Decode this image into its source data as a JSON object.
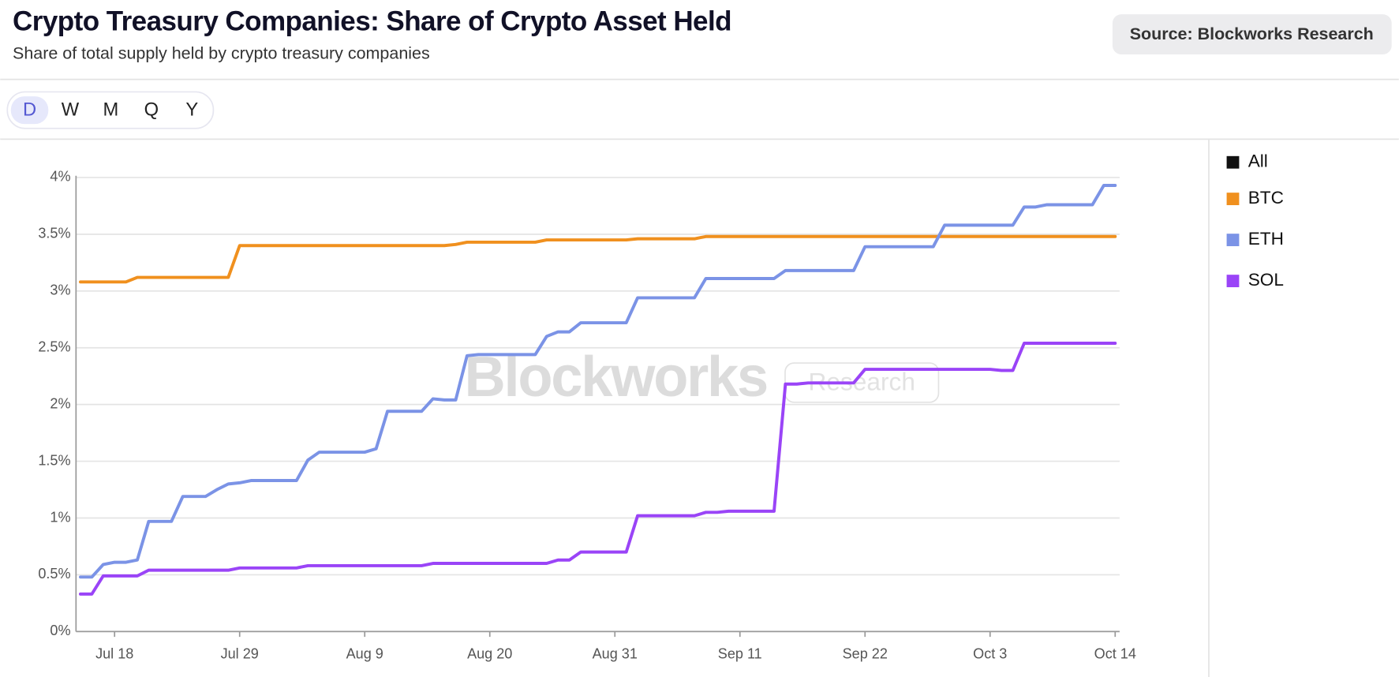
{
  "source": "Source: Blockworks Research",
  "timeframes": [
    "D",
    "W",
    "M",
    "Q",
    "Y"
  ],
  "selected_timeframe": 0,
  "chart_data": {
    "type": "line",
    "title": "Crypto Treasury Companies: Share of Crypto Asset Held",
    "subtitle": "Share of total supply held by crypto treasury companies",
    "watermark": [
      "Blockworks",
      "Research"
    ],
    "categories": [
      null,
      null,
      null,
      "Jul 18",
      null,
      null,
      null,
      null,
      null,
      null,
      null,
      null,
      null,
      null,
      "Jul 29",
      null,
      null,
      null,
      null,
      null,
      null,
      null,
      null,
      null,
      null,
      "Aug 9",
      null,
      null,
      null,
      null,
      null,
      null,
      null,
      null,
      null,
      null,
      "Aug 20",
      null,
      null,
      null,
      null,
      null,
      null,
      null,
      null,
      null,
      null,
      "Aug 31",
      null,
      null,
      null,
      null,
      null,
      null,
      null,
      null,
      null,
      null,
      "Sep 11",
      null,
      null,
      null,
      null,
      null,
      null,
      null,
      null,
      null,
      null,
      "Sep 22",
      null,
      null,
      null,
      null,
      null,
      null,
      null,
      null,
      null,
      null,
      "Oct 3",
      null,
      null,
      null,
      null,
      null,
      null,
      null,
      null,
      null,
      null,
      "Oct 14"
    ],
    "ylim": [
      0,
      4
    ],
    "yticks": [
      {
        "value": 0,
        "label": "0%"
      },
      {
        "value": 0.5,
        "label": "0.5%"
      },
      {
        "value": 1,
        "label": "1%"
      },
      {
        "value": 1.5,
        "label": "1.5%"
      },
      {
        "value": 2,
        "label": "2%"
      },
      {
        "value": 2.5,
        "label": "2.5%"
      },
      {
        "value": 3,
        "label": "3%"
      },
      {
        "value": 3.5,
        "label": "3.5%"
      },
      {
        "value": 4,
        "label": "4%"
      }
    ],
    "grid": true,
    "legend_all": {
      "name": "All",
      "color": "#111111"
    },
    "series": [
      {
        "name": "BTC",
        "color": "#f0901e",
        "values": [
          3.08,
          3.08,
          3.08,
          3.08,
          3.08,
          3.12,
          3.12,
          3.12,
          3.12,
          3.12,
          3.12,
          3.12,
          3.12,
          3.12,
          3.4,
          3.4,
          3.4,
          3.4,
          3.4,
          3.4,
          3.4,
          3.4,
          3.4,
          3.4,
          3.4,
          3.4,
          3.4,
          3.4,
          3.4,
          3.4,
          3.4,
          3.4,
          3.4,
          3.41,
          3.43,
          3.43,
          3.43,
          3.43,
          3.43,
          3.43,
          3.43,
          3.45,
          3.45,
          3.45,
          3.45,
          3.45,
          3.45,
          3.45,
          3.45,
          3.46,
          3.46,
          3.46,
          3.46,
          3.46,
          3.46,
          3.48,
          3.48,
          3.48,
          3.48,
          3.48,
          3.48,
          3.48,
          3.48,
          3.48,
          3.48,
          3.48,
          3.48,
          3.48,
          3.48,
          3.48,
          3.48,
          3.48,
          3.48,
          3.48,
          3.48,
          3.48,
          3.48,
          3.48,
          3.48,
          3.48,
          3.48,
          3.48,
          3.48,
          3.48,
          3.48,
          3.48,
          3.48,
          3.48,
          3.48,
          3.48,
          3.48,
          3.48
        ]
      },
      {
        "name": "ETH",
        "color": "#7b93e6",
        "values": [
          0.48,
          0.48,
          0.59,
          0.61,
          0.61,
          0.63,
          0.97,
          0.97,
          0.97,
          1.19,
          1.19,
          1.19,
          1.25,
          1.3,
          1.31,
          1.33,
          1.33,
          1.33,
          1.33,
          1.33,
          1.51,
          1.58,
          1.58,
          1.58,
          1.58,
          1.58,
          1.61,
          1.94,
          1.94,
          1.94,
          1.94,
          2.05,
          2.04,
          2.04,
          2.43,
          2.44,
          2.44,
          2.44,
          2.44,
          2.44,
          2.44,
          2.6,
          2.64,
          2.64,
          2.72,
          2.72,
          2.72,
          2.72,
          2.72,
          2.94,
          2.94,
          2.94,
          2.94,
          2.94,
          2.94,
          3.11,
          3.11,
          3.11,
          3.11,
          3.11,
          3.11,
          3.11,
          3.18,
          3.18,
          3.18,
          3.18,
          3.18,
          3.18,
          3.18,
          3.39,
          3.39,
          3.39,
          3.39,
          3.39,
          3.39,
          3.39,
          3.58,
          3.58,
          3.58,
          3.58,
          3.58,
          3.58,
          3.58,
          3.74,
          3.74,
          3.76,
          3.76,
          3.76,
          3.76,
          3.76,
          3.93,
          3.93
        ]
      },
      {
        "name": "SOL",
        "color": "#9a44f7",
        "values": [
          0.33,
          0.33,
          0.49,
          0.49,
          0.49,
          0.49,
          0.54,
          0.54,
          0.54,
          0.54,
          0.54,
          0.54,
          0.54,
          0.54,
          0.56,
          0.56,
          0.56,
          0.56,
          0.56,
          0.56,
          0.58,
          0.58,
          0.58,
          0.58,
          0.58,
          0.58,
          0.58,
          0.58,
          0.58,
          0.58,
          0.58,
          0.6,
          0.6,
          0.6,
          0.6,
          0.6,
          0.6,
          0.6,
          0.6,
          0.6,
          0.6,
          0.6,
          0.63,
          0.63,
          0.7,
          0.7,
          0.7,
          0.7,
          0.7,
          1.02,
          1.02,
          1.02,
          1.02,
          1.02,
          1.02,
          1.05,
          1.05,
          1.06,
          1.06,
          1.06,
          1.06,
          1.06,
          2.18,
          2.18,
          2.19,
          2.19,
          2.19,
          2.19,
          2.19,
          2.31,
          2.31,
          2.31,
          2.31,
          2.31,
          2.31,
          2.31,
          2.31,
          2.31,
          2.31,
          2.31,
          2.31,
          2.3,
          2.3,
          2.54,
          2.54,
          2.54,
          2.54,
          2.54,
          2.54,
          2.54,
          2.54,
          2.54
        ]
      }
    ]
  }
}
